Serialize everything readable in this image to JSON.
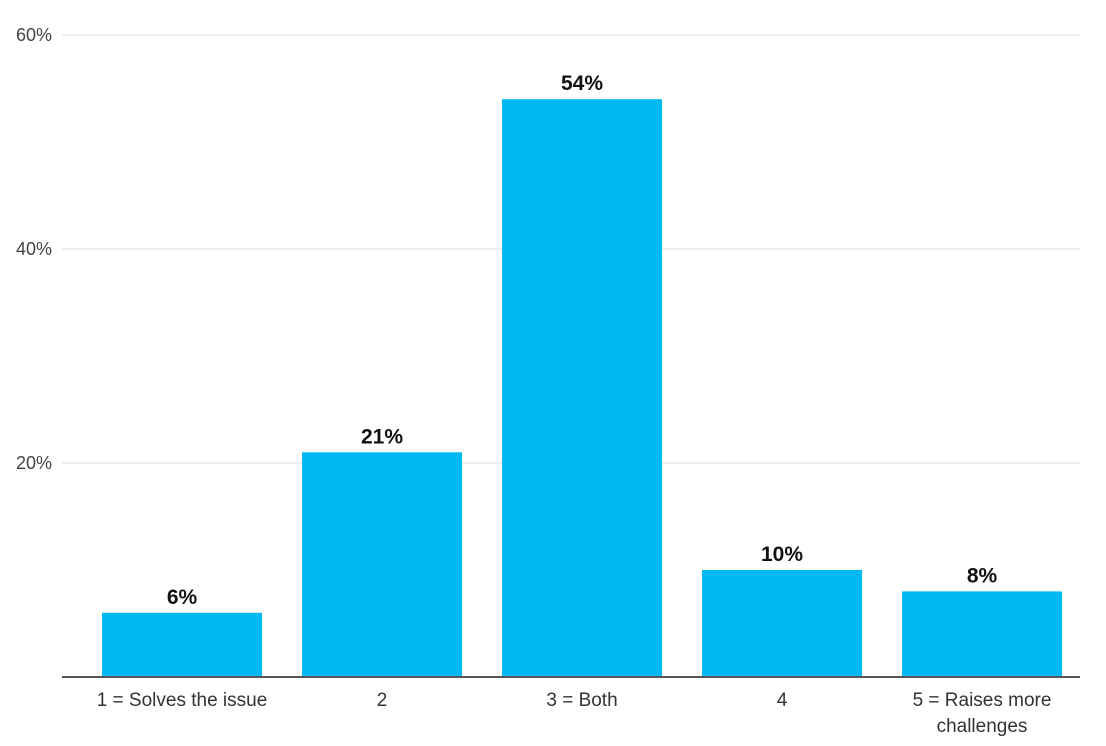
{
  "chart_data": {
    "type": "bar",
    "categories": [
      "1 = Solves the issue",
      "2",
      "3 = Both",
      "4",
      "5 = Raises more challenges"
    ],
    "category_lines": [
      [
        "1 = Solves the issue"
      ],
      [
        "2"
      ],
      [
        "3 = Both"
      ],
      [
        "4"
      ],
      [
        "5 = Raises more",
        "challenges"
      ]
    ],
    "values": [
      6,
      21,
      54,
      10,
      8
    ],
    "data_labels": [
      "6%",
      "21%",
      "54%",
      "10%",
      "8%"
    ],
    "yticks": [
      {
        "value": 20,
        "label": "20%"
      },
      {
        "value": 40,
        "label": "40%"
      },
      {
        "value": 60,
        "label": "60%"
      }
    ],
    "ylim": [
      0,
      60
    ],
    "title": "",
    "xlabel": "",
    "ylabel": "",
    "grid": true,
    "legend": "none",
    "colors": {
      "bar": "#00b8f4",
      "grid": "#e0e0e0",
      "axis": "#555555"
    }
  }
}
